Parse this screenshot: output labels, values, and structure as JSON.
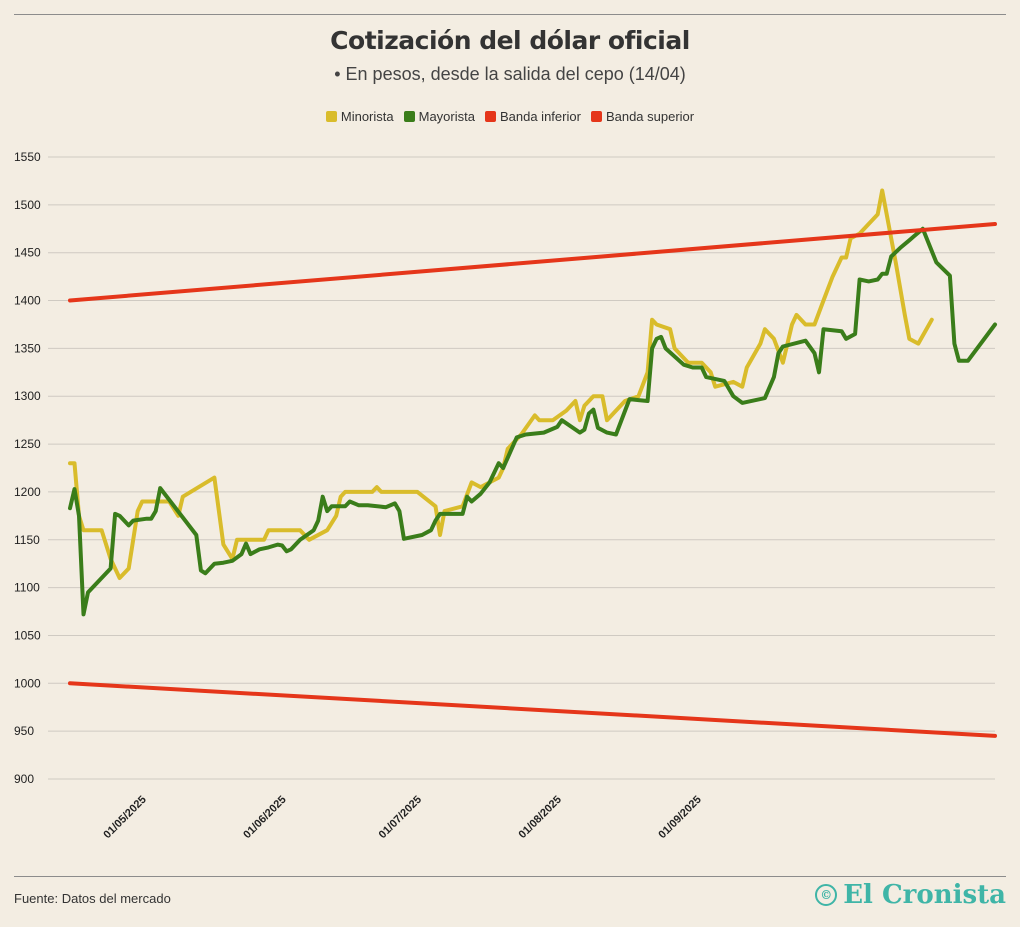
{
  "header": {
    "title": "Cotización del dólar oficial",
    "subtitle": "• En pesos, desde la salida del cepo (14/04)"
  },
  "footer": {
    "source": "Fuente: Datos del mercado",
    "brand": "El Cronista",
    "brand_icon": "©"
  },
  "colors": {
    "minorista": "#d9bc2b",
    "mayorista": "#3a7d1a",
    "banda_inferior": "#e5361a",
    "banda_superior": "#e5361a",
    "grid": "#cfcac2",
    "background": "#f3ede2"
  },
  "chart_data": {
    "type": "line",
    "title": "Cotización del dólar oficial",
    "subtitle": "• En pesos, desde la salida del cepo (14/04)",
    "x_start": "2025-04-14",
    "x_end": "2025-09-30",
    "ylim": [
      900,
      1550
    ],
    "yticks": [
      900,
      950,
      1000,
      1050,
      1100,
      1150,
      1200,
      1250,
      1300,
      1350,
      1400,
      1450,
      1500,
      1550
    ],
    "xticks": [
      {
        "date": "2025-05-01",
        "label": "01/05/2025"
      },
      {
        "date": "2025-06-01",
        "label": "01/06/2025"
      },
      {
        "date": "2025-07-01",
        "label": "01/07/2025"
      },
      {
        "date": "2025-08-01",
        "label": "01/08/2025"
      },
      {
        "date": "2025-09-01",
        "label": "01/09/2025"
      }
    ],
    "grid": true,
    "legend_position": "top-center",
    "series": [
      {
        "name": "Minorista",
        "color_key": "minorista",
        "points": [
          [
            "2025-04-14",
            1230
          ],
          [
            "2025-04-15",
            1230
          ],
          [
            "2025-04-16",
            1175
          ],
          [
            "2025-04-17",
            1160
          ],
          [
            "2025-04-21",
            1160
          ],
          [
            "2025-04-23",
            1130
          ],
          [
            "2025-04-25",
            1110
          ],
          [
            "2025-04-27",
            1120
          ],
          [
            "2025-04-29",
            1180
          ],
          [
            "2025-04-30",
            1190
          ],
          [
            "2025-05-06",
            1190
          ],
          [
            "2025-05-08",
            1175
          ],
          [
            "2025-05-09",
            1195
          ],
          [
            "2025-05-16",
            1215
          ],
          [
            "2025-05-18",
            1145
          ],
          [
            "2025-05-20",
            1130
          ],
          [
            "2025-05-21",
            1150
          ],
          [
            "2025-05-27",
            1150
          ],
          [
            "2025-05-28",
            1160
          ],
          [
            "2025-06-04",
            1160
          ],
          [
            "2025-06-06",
            1150
          ],
          [
            "2025-06-10",
            1160
          ],
          [
            "2025-06-12",
            1175
          ],
          [
            "2025-06-13",
            1195
          ],
          [
            "2025-06-14",
            1200
          ],
          [
            "2025-06-20",
            1200
          ],
          [
            "2025-06-21",
            1205
          ],
          [
            "2025-06-22",
            1200
          ],
          [
            "2025-06-30",
            1200
          ],
          [
            "2025-07-04",
            1185
          ],
          [
            "2025-07-05",
            1155
          ],
          [
            "2025-07-06",
            1180
          ],
          [
            "2025-07-10",
            1185
          ],
          [
            "2025-07-12",
            1210
          ],
          [
            "2025-07-14",
            1205
          ],
          [
            "2025-07-16",
            1210
          ],
          [
            "2025-07-18",
            1215
          ],
          [
            "2025-07-19",
            1225
          ],
          [
            "2025-07-20",
            1245
          ],
          [
            "2025-07-23",
            1260
          ],
          [
            "2025-07-26",
            1280
          ],
          [
            "2025-07-27",
            1275
          ],
          [
            "2025-07-30",
            1275
          ],
          [
            "2025-08-02",
            1285
          ],
          [
            "2025-08-04",
            1295
          ],
          [
            "2025-08-05",
            1275
          ],
          [
            "2025-08-06",
            1290
          ],
          [
            "2025-08-08",
            1300
          ],
          [
            "2025-08-10",
            1300
          ],
          [
            "2025-08-11",
            1275
          ],
          [
            "2025-08-13",
            1285
          ],
          [
            "2025-08-15",
            1295
          ],
          [
            "2025-08-18",
            1300
          ],
          [
            "2025-08-20",
            1325
          ],
          [
            "2025-08-21",
            1380
          ],
          [
            "2025-08-22",
            1375
          ],
          [
            "2025-08-25",
            1370
          ],
          [
            "2025-08-26",
            1350
          ],
          [
            "2025-08-28",
            1340
          ],
          [
            "2025-08-29",
            1335
          ],
          [
            "2025-09-01",
            1335
          ],
          [
            "2025-09-03",
            1325
          ],
          [
            "2025-09-04",
            1310
          ],
          [
            "2025-09-08",
            1315
          ],
          [
            "2025-09-10",
            1310
          ],
          [
            "2025-09-11",
            1330
          ],
          [
            "2025-09-14",
            1355
          ],
          [
            "2025-09-15",
            1370
          ],
          [
            "2025-09-17",
            1360
          ],
          [
            "2025-09-19",
            1335
          ],
          [
            "2025-09-21",
            1375
          ],
          [
            "2025-09-22",
            1385
          ],
          [
            "2025-09-24",
            1375
          ],
          [
            "2025-09-26",
            1375
          ],
          [
            "2025-09-28",
            1400
          ],
          [
            "2025-09-30",
            1425
          ],
          [
            "2025-10-02",
            1445
          ],
          [
            "2025-10-03",
            1445
          ],
          [
            "2025-10-04",
            1465
          ],
          [
            "2025-10-06",
            1470
          ],
          [
            "2025-10-10",
            1490
          ],
          [
            "2025-10-11",
            1515
          ],
          [
            "2025-10-14",
            1440
          ],
          [
            "2025-10-16",
            1385
          ],
          [
            "2025-10-17",
            1360
          ],
          [
            "2025-10-19",
            1355
          ],
          [
            "2025-10-22",
            1380
          ]
        ]
      },
      {
        "name": "Mayorista",
        "color_key": "mayorista",
        "points": [
          [
            "2025-04-14",
            1183
          ],
          [
            "2025-04-15",
            1203
          ],
          [
            "2025-04-16",
            1175
          ],
          [
            "2025-04-17",
            1072
          ],
          [
            "2025-04-18",
            1095
          ],
          [
            "2025-04-22",
            1115
          ],
          [
            "2025-04-23",
            1120
          ],
          [
            "2025-04-24",
            1177
          ],
          [
            "2025-04-25",
            1175
          ],
          [
            "2025-04-27",
            1165
          ],
          [
            "2025-04-28",
            1170
          ],
          [
            "2025-05-01",
            1172
          ],
          [
            "2025-05-02",
            1172
          ],
          [
            "2025-05-03",
            1180
          ],
          [
            "2025-05-04",
            1204
          ],
          [
            "2025-05-12",
            1155
          ],
          [
            "2025-05-13",
            1118
          ],
          [
            "2025-05-14",
            1115
          ],
          [
            "2025-05-16",
            1125
          ],
          [
            "2025-05-18",
            1126
          ],
          [
            "2025-05-20",
            1128
          ],
          [
            "2025-05-22",
            1135
          ],
          [
            "2025-05-23",
            1146
          ],
          [
            "2025-05-24",
            1135
          ],
          [
            "2025-05-26",
            1140
          ],
          [
            "2025-05-28",
            1142
          ],
          [
            "2025-05-30",
            1145
          ],
          [
            "2025-05-31",
            1144
          ],
          [
            "2025-06-01",
            1138
          ],
          [
            "2025-06-02",
            1140
          ],
          [
            "2025-06-04",
            1150
          ],
          [
            "2025-06-07",
            1160
          ],
          [
            "2025-06-08",
            1170
          ],
          [
            "2025-06-09",
            1195
          ],
          [
            "2025-06-10",
            1180
          ],
          [
            "2025-06-11",
            1185
          ],
          [
            "2025-06-14",
            1185
          ],
          [
            "2025-06-15",
            1190
          ],
          [
            "2025-06-17",
            1186
          ],
          [
            "2025-06-19",
            1186
          ],
          [
            "2025-06-23",
            1184
          ],
          [
            "2025-06-25",
            1188
          ],
          [
            "2025-06-26",
            1180
          ],
          [
            "2025-06-27",
            1151
          ],
          [
            "2025-07-01",
            1155
          ],
          [
            "2025-07-03",
            1160
          ],
          [
            "2025-07-04",
            1170
          ],
          [
            "2025-07-05",
            1177
          ],
          [
            "2025-07-10",
            1177
          ],
          [
            "2025-07-11",
            1195
          ],
          [
            "2025-07-12",
            1190
          ],
          [
            "2025-07-14",
            1198
          ],
          [
            "2025-07-16",
            1210
          ],
          [
            "2025-07-18",
            1230
          ],
          [
            "2025-07-19",
            1225
          ],
          [
            "2025-07-22",
            1257
          ],
          [
            "2025-07-24",
            1260
          ],
          [
            "2025-07-28",
            1262
          ],
          [
            "2025-07-31",
            1268
          ],
          [
            "2025-08-01",
            1275
          ],
          [
            "2025-08-05",
            1262
          ],
          [
            "2025-08-06",
            1265
          ],
          [
            "2025-08-07",
            1282
          ],
          [
            "2025-08-08",
            1286
          ],
          [
            "2025-08-09",
            1267
          ],
          [
            "2025-08-11",
            1262
          ],
          [
            "2025-08-13",
            1260
          ],
          [
            "2025-08-16",
            1297
          ],
          [
            "2025-08-18",
            1296
          ],
          [
            "2025-08-20",
            1295
          ],
          [
            "2025-08-21",
            1350
          ],
          [
            "2025-08-22",
            1360
          ],
          [
            "2025-08-23",
            1362
          ],
          [
            "2025-08-24",
            1350
          ],
          [
            "2025-08-28",
            1333
          ],
          [
            "2025-08-30",
            1330
          ],
          [
            "2025-09-01",
            1330
          ],
          [
            "2025-09-02",
            1320
          ],
          [
            "2025-09-06",
            1316
          ],
          [
            "2025-09-08",
            1300
          ],
          [
            "2025-09-10",
            1293
          ],
          [
            "2025-09-15",
            1298
          ],
          [
            "2025-09-17",
            1320
          ],
          [
            "2025-09-18",
            1345
          ],
          [
            "2025-09-19",
            1352
          ],
          [
            "2025-09-24",
            1358
          ],
          [
            "2025-09-26",
            1345
          ],
          [
            "2025-09-27",
            1325
          ],
          [
            "2025-09-28",
            1370
          ],
          [
            "2025-10-02",
            1368
          ],
          [
            "2025-10-03",
            1360
          ],
          [
            "2025-10-05",
            1365
          ],
          [
            "2025-10-06",
            1422
          ],
          [
            "2025-10-08",
            1420
          ],
          [
            "2025-10-10",
            1422
          ],
          [
            "2025-10-11",
            1428
          ],
          [
            "2025-10-12",
            1428
          ],
          [
            "2025-10-13",
            1446
          ],
          [
            "2025-10-15",
            1455
          ],
          [
            "2025-10-17",
            1463
          ],
          [
            "2025-10-18",
            1467
          ],
          [
            "2025-10-20",
            1475
          ],
          [
            "2025-10-23",
            1440
          ],
          [
            "2025-10-26",
            1426
          ],
          [
            "2025-10-27",
            1355
          ],
          [
            "2025-10-28",
            1337
          ],
          [
            "2025-10-30",
            1337
          ],
          [
            "2025-11-05",
            1375
          ]
        ]
      },
      {
        "name": "Banda inferior",
        "color_key": "banda_inferior",
        "points": [
          [
            "2025-04-14",
            1000
          ],
          [
            "2025-11-05",
            945
          ]
        ]
      },
      {
        "name": "Banda superior",
        "color_key": "banda_superior",
        "points": [
          [
            "2025-04-14",
            1400
          ],
          [
            "2025-11-05",
            1480
          ]
        ]
      }
    ]
  }
}
